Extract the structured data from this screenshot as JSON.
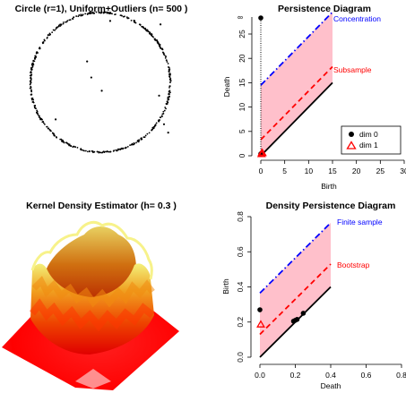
{
  "chart_data": [
    {
      "type": "scatter",
      "title": "Circle (r=1), Uniform+Outliers (n= 500 )",
      "circle_radius": 1,
      "n_points": 500,
      "outliers": [
        {
          "x": 0.14,
          "y": 0.88
        },
        {
          "x": 0.86,
          "y": 0.83
        },
        {
          "x": -0.19,
          "y": 0.3
        },
        {
          "x": -0.13,
          "y": 0.07
        },
        {
          "x": 0.02,
          "y": -0.12
        },
        {
          "x": 0.84,
          "y": -0.19
        },
        {
          "x": -0.64,
          "y": -0.53
        },
        {
          "x": 0.91,
          "y": -0.6
        },
        {
          "x": 0.97,
          "y": -0.72
        }
      ]
    },
    {
      "type": "scatter",
      "title": "Persistence Diagram",
      "xlabel": "Birth",
      "ylabel": "Death",
      "xlim": [
        0,
        30
      ],
      "ylim": [
        0,
        30
      ],
      "xticks": [
        "0",
        "5",
        "10",
        "15",
        "20",
        "25",
        "30"
      ],
      "yticks": [
        "0",
        "5",
        "10",
        "15",
        "20",
        "25"
      ],
      "infinity_label": "∞",
      "legend": {
        "position": "bottom-right",
        "entries": [
          "dim 0",
          "dim 1"
        ]
      },
      "dim0_points": [
        {
          "x": 0,
          "y": "inf"
        },
        {
          "x": 0,
          "y": 0.4
        }
      ],
      "dim1_points": [
        {
          "x": 0.25,
          "y": 0.6
        },
        {
          "x": 0.15,
          "y": 0.3
        },
        {
          "x": 0.35,
          "y": 0.5
        }
      ],
      "bands": [
        {
          "name": "Concentration",
          "offset": 14.5,
          "color": "#0000ff",
          "dash": "dotdash"
        },
        {
          "name": "Subsample",
          "offset": 3.3,
          "color": "#ff0000",
          "dash": "dashed"
        }
      ],
      "band_x_range": [
        0,
        15
      ],
      "band_fill": "#ffc0cb"
    },
    {
      "type": "surface",
      "title": "Kernel Density Estimator (h= 0.3 )"
    },
    {
      "type": "scatter",
      "title": "Density Persistence Diagram",
      "xlabel": "Death",
      "ylabel": "Birth",
      "xlim": [
        0,
        0.8
      ],
      "ylim": [
        0,
        0.8
      ],
      "xticks": [
        "0.0",
        "0.2",
        "0.4",
        "0.6",
        "0.8"
      ],
      "yticks": [
        "0.0",
        "0.2",
        "0.4",
        "0.6",
        "0.8"
      ],
      "dim0_points": [
        {
          "x": 0.0,
          "y": 0.27
        },
        {
          "x": 0.19,
          "y": 0.205
        },
        {
          "x": 0.2,
          "y": 0.21
        },
        {
          "x": 0.21,
          "y": 0.215
        },
        {
          "x": 0.245,
          "y": 0.25
        }
      ],
      "dim1_points": [
        {
          "x": 0.005,
          "y": 0.185
        }
      ],
      "bands": [
        {
          "name": "Finite sample",
          "offset": 0.365,
          "color": "#0000ff",
          "dash": "dotdash"
        },
        {
          "name": "Bootstrap",
          "offset": 0.13,
          "color": "#ff0000",
          "dash": "dashed"
        }
      ],
      "band_x_range": [
        0,
        0.4
      ],
      "band_fill": "#ffc0cb"
    }
  ]
}
